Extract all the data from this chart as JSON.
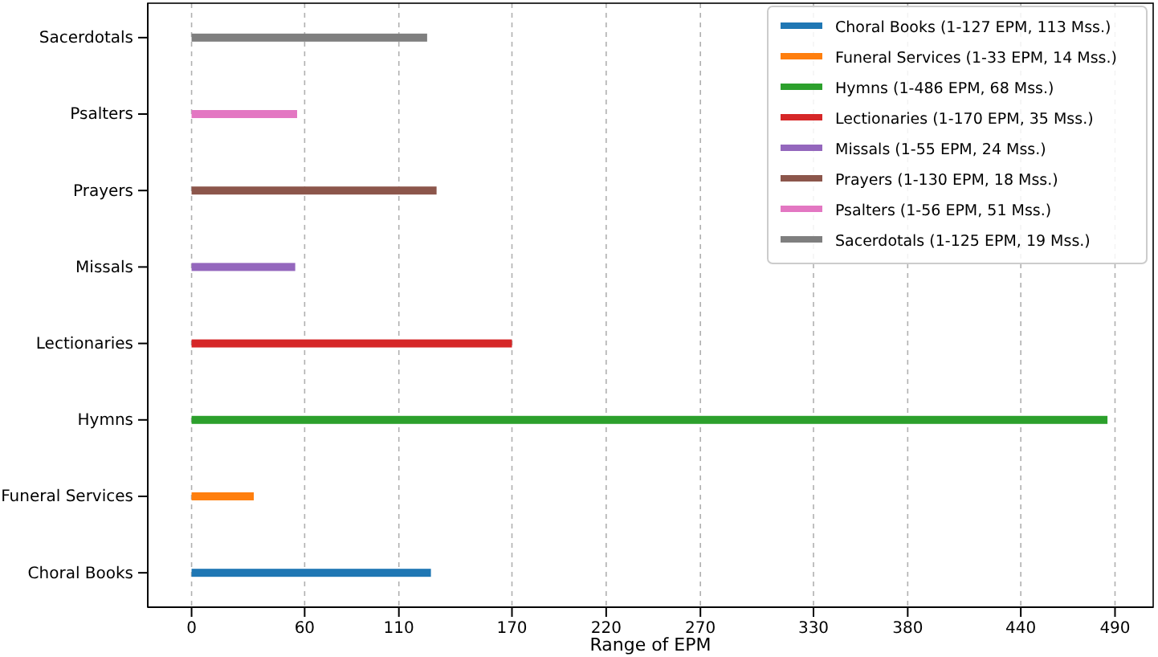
{
  "chart_data": {
    "type": "bar",
    "orientation": "horizontal",
    "xlabel": "Range of EPM",
    "categories": [
      "Sacerdotals",
      "Psalters",
      "Prayers",
      "Missals",
      "Lectionaries",
      "Hymns",
      "Funeral Services",
      "Choral Books"
    ],
    "series": [
      {
        "name": "Choral Books (1-127 EPM, 113 Mss.)",
        "color": "#1f77b4",
        "values": [
          null,
          null,
          null,
          null,
          null,
          null,
          null,
          127
        ]
      },
      {
        "name": "Funeral Services (1-33 EPM, 14 Mss.)",
        "color": "#ff7f0e",
        "values": [
          null,
          null,
          null,
          null,
          null,
          null,
          33,
          null
        ]
      },
      {
        "name": "Hymns (1-486 EPM, 68 Mss.)",
        "color": "#2ca02c",
        "values": [
          null,
          null,
          null,
          null,
          null,
          486,
          null,
          null
        ]
      },
      {
        "name": "Lectionaries (1-170 EPM, 35 Mss.)",
        "color": "#d62728",
        "values": [
          null,
          null,
          null,
          null,
          170,
          null,
          null,
          null
        ]
      },
      {
        "name": "Missals (1-55 EPM, 24 Mss.)",
        "color": "#9467bd",
        "values": [
          null,
          null,
          null,
          55,
          null,
          null,
          null,
          null
        ]
      },
      {
        "name": "Prayers (1-130 EPM, 18 Mss.)",
        "color": "#8c564b",
        "values": [
          null,
          null,
          130,
          null,
          null,
          null,
          null,
          null
        ]
      },
      {
        "name": "Psalters (1-56 EPM, 51 Mss.)",
        "color": "#e377c2",
        "values": [
          null,
          56,
          null,
          null,
          null,
          null,
          null,
          null
        ]
      },
      {
        "name": "Sacerdotals (1-125 EPM, 19 Mss.)",
        "color": "#7f7f7f",
        "values": [
          125,
          null,
          null,
          null,
          null,
          null,
          null,
          null
        ]
      }
    ],
    "xlim": [
      -23.25,
      510.25
    ],
    "xticks": [
      0,
      60,
      110,
      170,
      220,
      270,
      330,
      380,
      440,
      490
    ],
    "grid": "x",
    "legend": "top right"
  }
}
